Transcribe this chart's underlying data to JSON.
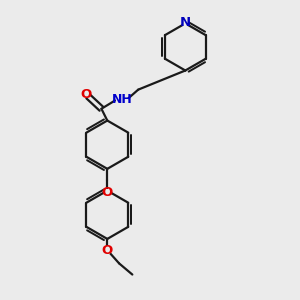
{
  "bg_color": "#ebebeb",
  "bond_color": "#1a1a1a",
  "bond_width": 1.6,
  "atom_colors": {
    "O": "#e00000",
    "N": "#0000cc",
    "N_py": "#0000bb"
  },
  "font_size_atom": 8.5,
  "figsize": [
    3.0,
    3.0
  ],
  "dpi": 100,
  "xlim": [
    0,
    10
  ],
  "ylim": [
    0,
    10
  ]
}
